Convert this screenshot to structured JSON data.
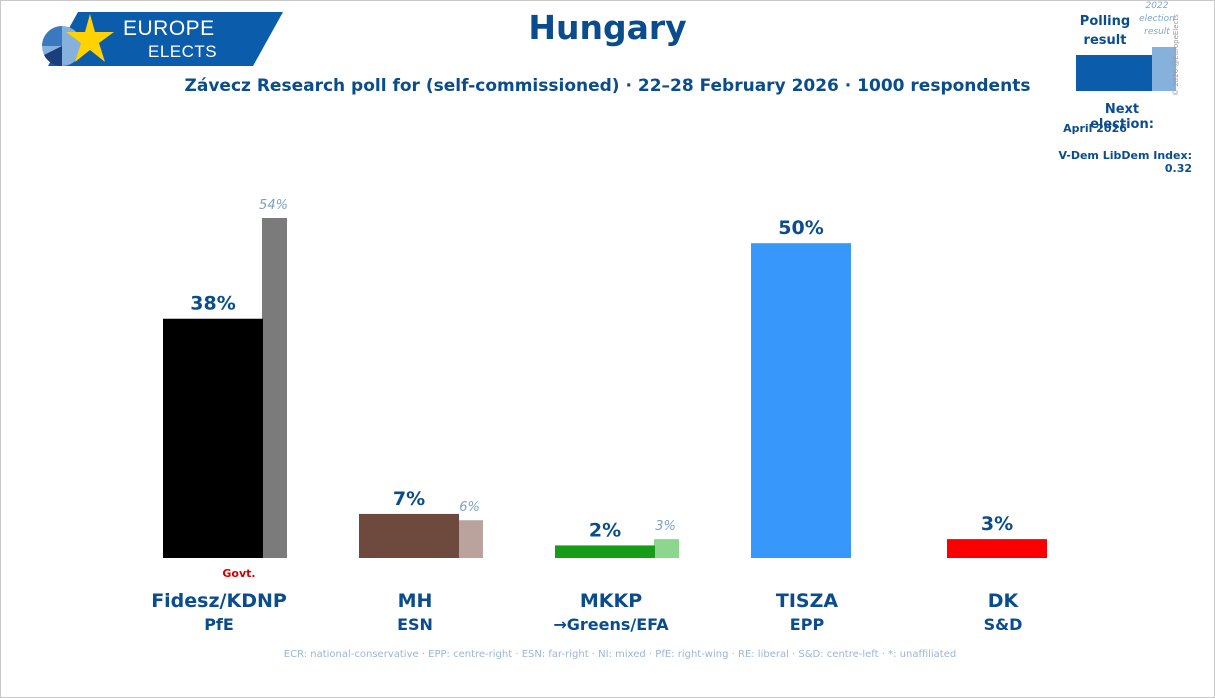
{
  "logo": {
    "line1": "EUROPE",
    "line2": "ELECTS"
  },
  "title": "Hungary",
  "subtitle": "Závecz Research poll for (self-commissioned) · 22–28 February 2026 · 1000 respondents",
  "legend": {
    "polling_label": "Polling result",
    "election_label": "2022 election result",
    "copyright": "© 2026 @EuropeElects",
    "next_election_label": "Next election:",
    "next_election_date": "April 2026",
    "vdem": "V-Dem LibDem Index: 0.32"
  },
  "chart_data": {
    "type": "bar",
    "title": "Hungary",
    "ylim": [
      0,
      60
    ],
    "categories": [
      "Fidesz/KDNP",
      "MH",
      "MKKP",
      "TISZA",
      "DK"
    ],
    "groups": [
      "PfE",
      "ESN",
      "→Greens/EFA",
      "EPP",
      "S&D"
    ],
    "series": [
      {
        "name": "Polling result",
        "values": [
          38,
          7,
          2,
          50,
          3
        ],
        "labels": [
          "38%",
          "7%",
          "2%",
          "50%",
          "3%"
        ]
      },
      {
        "name": "2022 election result",
        "values": [
          54,
          6,
          3,
          null,
          null
        ],
        "labels": [
          "54%",
          "6%",
          "3%",
          "",
          ""
        ]
      }
    ],
    "colors": {
      "poll": [
        "#000000",
        "#6e4a3e",
        "#169c16",
        "#3897fb",
        "#fb0000"
      ],
      "election": [
        "#7b7b7b",
        "#b9a39c",
        "#8dd68d",
        null,
        null
      ]
    },
    "govt_label": "Govt.",
    "govt_index": 0
  },
  "colors": {
    "brand": "#0b4d8c",
    "accent": "#ffd200",
    "govt": "#d40000",
    "label_2022": "#7f9fc3"
  },
  "footer": "ECR: national-conservative · EPP: centre-right · ESN: far-right · NI: mixed · PfE: right-wing · RE: liberal · S&D: centre-left · *: unaffiliated"
}
